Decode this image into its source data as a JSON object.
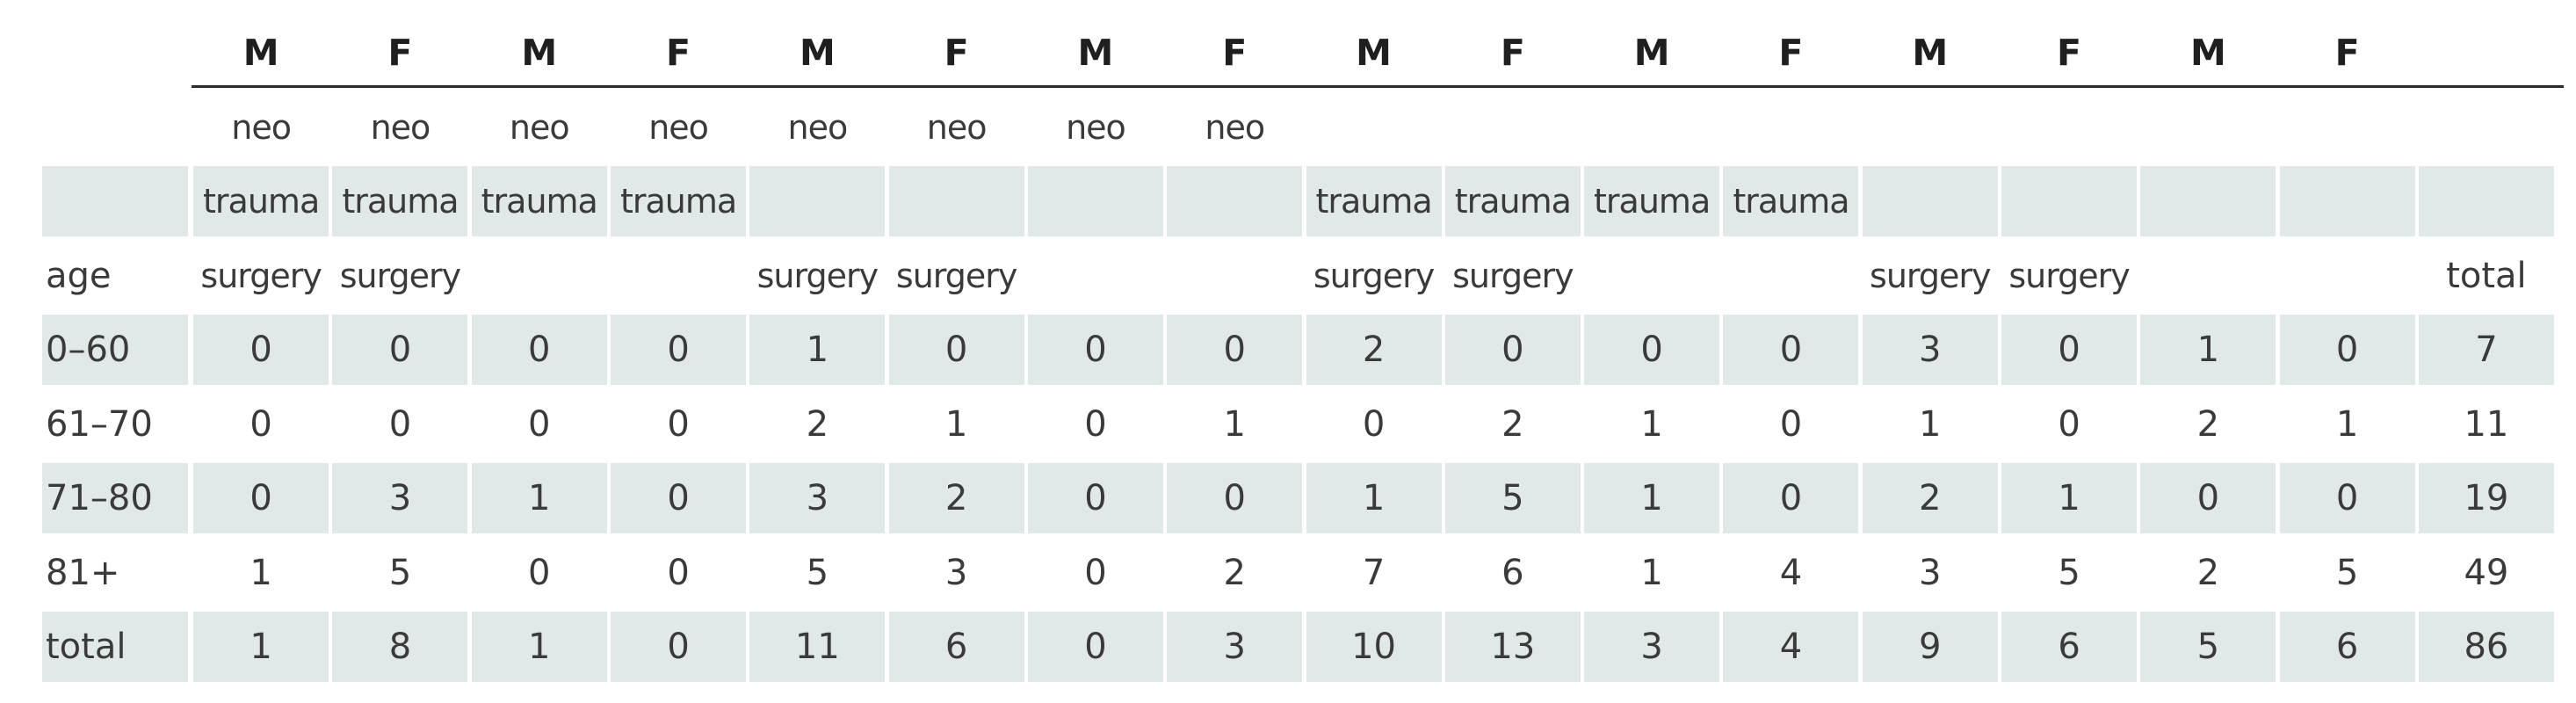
{
  "columns": [
    {
      "sex": "M",
      "neo": "neo",
      "trauma": "trauma",
      "surgery": "surgery"
    },
    {
      "sex": "F",
      "neo": "neo",
      "trauma": "trauma",
      "surgery": "surgery"
    },
    {
      "sex": "M",
      "neo": "neo",
      "trauma": "trauma",
      "surgery": ""
    },
    {
      "sex": "F",
      "neo": "neo",
      "trauma": "trauma",
      "surgery": ""
    },
    {
      "sex": "M",
      "neo": "neo",
      "trauma": "",
      "surgery": "surgery"
    },
    {
      "sex": "F",
      "neo": "neo",
      "trauma": "",
      "surgery": "surgery"
    },
    {
      "sex": "M",
      "neo": "neo",
      "trauma": "",
      "surgery": ""
    },
    {
      "sex": "F",
      "neo": "neo",
      "trauma": "",
      "surgery": ""
    },
    {
      "sex": "M",
      "neo": "",
      "trauma": "trauma",
      "surgery": "surgery"
    },
    {
      "sex": "F",
      "neo": "",
      "trauma": "trauma",
      "surgery": "surgery"
    },
    {
      "sex": "M",
      "neo": "",
      "trauma": "trauma",
      "surgery": ""
    },
    {
      "sex": "F",
      "neo": "",
      "trauma": "trauma",
      "surgery": ""
    },
    {
      "sex": "M",
      "neo": "",
      "trauma": "",
      "surgery": "surgery"
    },
    {
      "sex": "F",
      "neo": "",
      "trauma": "",
      "surgery": "surgery"
    },
    {
      "sex": "M",
      "neo": "",
      "trauma": "",
      "surgery": ""
    },
    {
      "sex": "F",
      "neo": "",
      "trauma": "",
      "surgery": ""
    }
  ],
  "age_header": "age",
  "total_header": "total",
  "rows": [
    {
      "label": "0–60",
      "values": [
        "0",
        "0",
        "0",
        "0",
        "1",
        "0",
        "0",
        "0",
        "2",
        "0",
        "0",
        "0",
        "3",
        "0",
        "1",
        "0"
      ],
      "total": "7"
    },
    {
      "label": "61–70",
      "values": [
        "0",
        "0",
        "0",
        "0",
        "2",
        "1",
        "0",
        "1",
        "0",
        "2",
        "1",
        "0",
        "1",
        "0",
        "2",
        "1"
      ],
      "total": "11"
    },
    {
      "label": "71–80",
      "values": [
        "0",
        "3",
        "1",
        "0",
        "3",
        "2",
        "0",
        "0",
        "1",
        "5",
        "1",
        "0",
        "2",
        "1",
        "0",
        "0"
      ],
      "total": "19"
    },
    {
      "label": "81+",
      "values": [
        "1",
        "5",
        "0",
        "0",
        "5",
        "3",
        "0",
        "2",
        "7",
        "6",
        "1",
        "4",
        "3",
        "5",
        "2",
        "5"
      ],
      "total": "49"
    },
    {
      "label": "total",
      "values": [
        "1",
        "8",
        "1",
        "0",
        "11",
        "6",
        "0",
        "3",
        "10",
        "13",
        "3",
        "4",
        "9",
        "6",
        "5",
        "6"
      ],
      "total": "86"
    }
  ],
  "colors": {
    "shade": "#e1e9e8",
    "text": "#3a3a3a",
    "rule": "#2b2b2b"
  }
}
